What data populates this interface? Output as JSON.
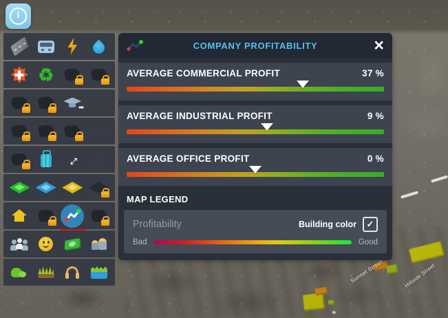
{
  "hud": {
    "info_button_glyph": "i"
  },
  "sidebar": {
    "rows": [
      {
        "items": [
          {
            "id": "roads"
          },
          {
            "id": "transit"
          },
          {
            "id": "electricity"
          },
          {
            "id": "water"
          }
        ]
      },
      {
        "items": [
          {
            "id": "healthcare"
          },
          {
            "id": "garbage",
            "glyph": "♻"
          },
          {
            "id": "locked-1",
            "locked": true
          },
          {
            "id": "locked-2",
            "locked": true
          }
        ]
      },
      {
        "items": [
          {
            "id": "locked-3",
            "locked": true
          },
          {
            "id": "locked-4",
            "locked": true
          },
          {
            "id": "education"
          }
        ]
      },
      {
        "items": [
          {
            "id": "locked-5",
            "locked": true
          },
          {
            "id": "locked-6",
            "locked": true
          },
          {
            "id": "locked-7",
            "locked": true
          }
        ]
      },
      {
        "items": [
          {
            "id": "locked-8",
            "locked": true
          },
          {
            "id": "tourism"
          },
          {
            "id": "routes",
            "glyph": "↔"
          }
        ]
      },
      {
        "items": [
          {
            "id": "zone-residential"
          },
          {
            "id": "zone-commercial"
          },
          {
            "id": "zone-office"
          },
          {
            "id": "zone-locked",
            "locked": true
          }
        ]
      },
      {
        "items": [
          {
            "id": "home"
          },
          {
            "id": "locked-9",
            "locked": true
          },
          {
            "id": "profitability",
            "selected": true
          },
          {
            "id": "locked-10",
            "locked": true
          }
        ]
      },
      {
        "items": [
          {
            "id": "population"
          },
          {
            "id": "happiness"
          },
          {
            "id": "money"
          },
          {
            "id": "workers"
          }
        ]
      },
      {
        "items": [
          {
            "id": "parks"
          },
          {
            "id": "fertility"
          },
          {
            "id": "noise"
          },
          {
            "id": "groundwater"
          }
        ]
      }
    ]
  },
  "panel": {
    "title": "COMPANY PROFITABILITY",
    "close_glyph": "×",
    "title_color": "#54c2ee",
    "slider_range": [
      -100,
      100
    ],
    "stats": [
      {
        "label": "AVERAGE COMMERCIAL PROFIT",
        "value": 37,
        "value_label": "37 %"
      },
      {
        "label": "AVERAGE INDUSTRIAL PROFIT",
        "value": 9,
        "value_label": "9 %"
      },
      {
        "label": "AVERAGE OFFICE PROFIT",
        "value": 0,
        "value_label": "0 %"
      }
    ],
    "slider_gradient": [
      "#e2471b",
      "#d08a1e",
      "#93ad21",
      "#3bac27"
    ],
    "legend": {
      "heading": "MAP LEGEND",
      "item_label": "Profitability",
      "toggle_label": "Building color",
      "toggle_checked": true,
      "check_glyph": "✓",
      "bad_label": "Bad",
      "good_label": "Good",
      "gradient": [
        "#ac0b4d",
        "#ea680f",
        "#f0a90e",
        "#e3c90f",
        "#13e83e"
      ]
    }
  },
  "map": {
    "street_labels": [
      {
        "text": "Sunset Street"
      },
      {
        "text": "Hillside Street"
      }
    ]
  }
}
